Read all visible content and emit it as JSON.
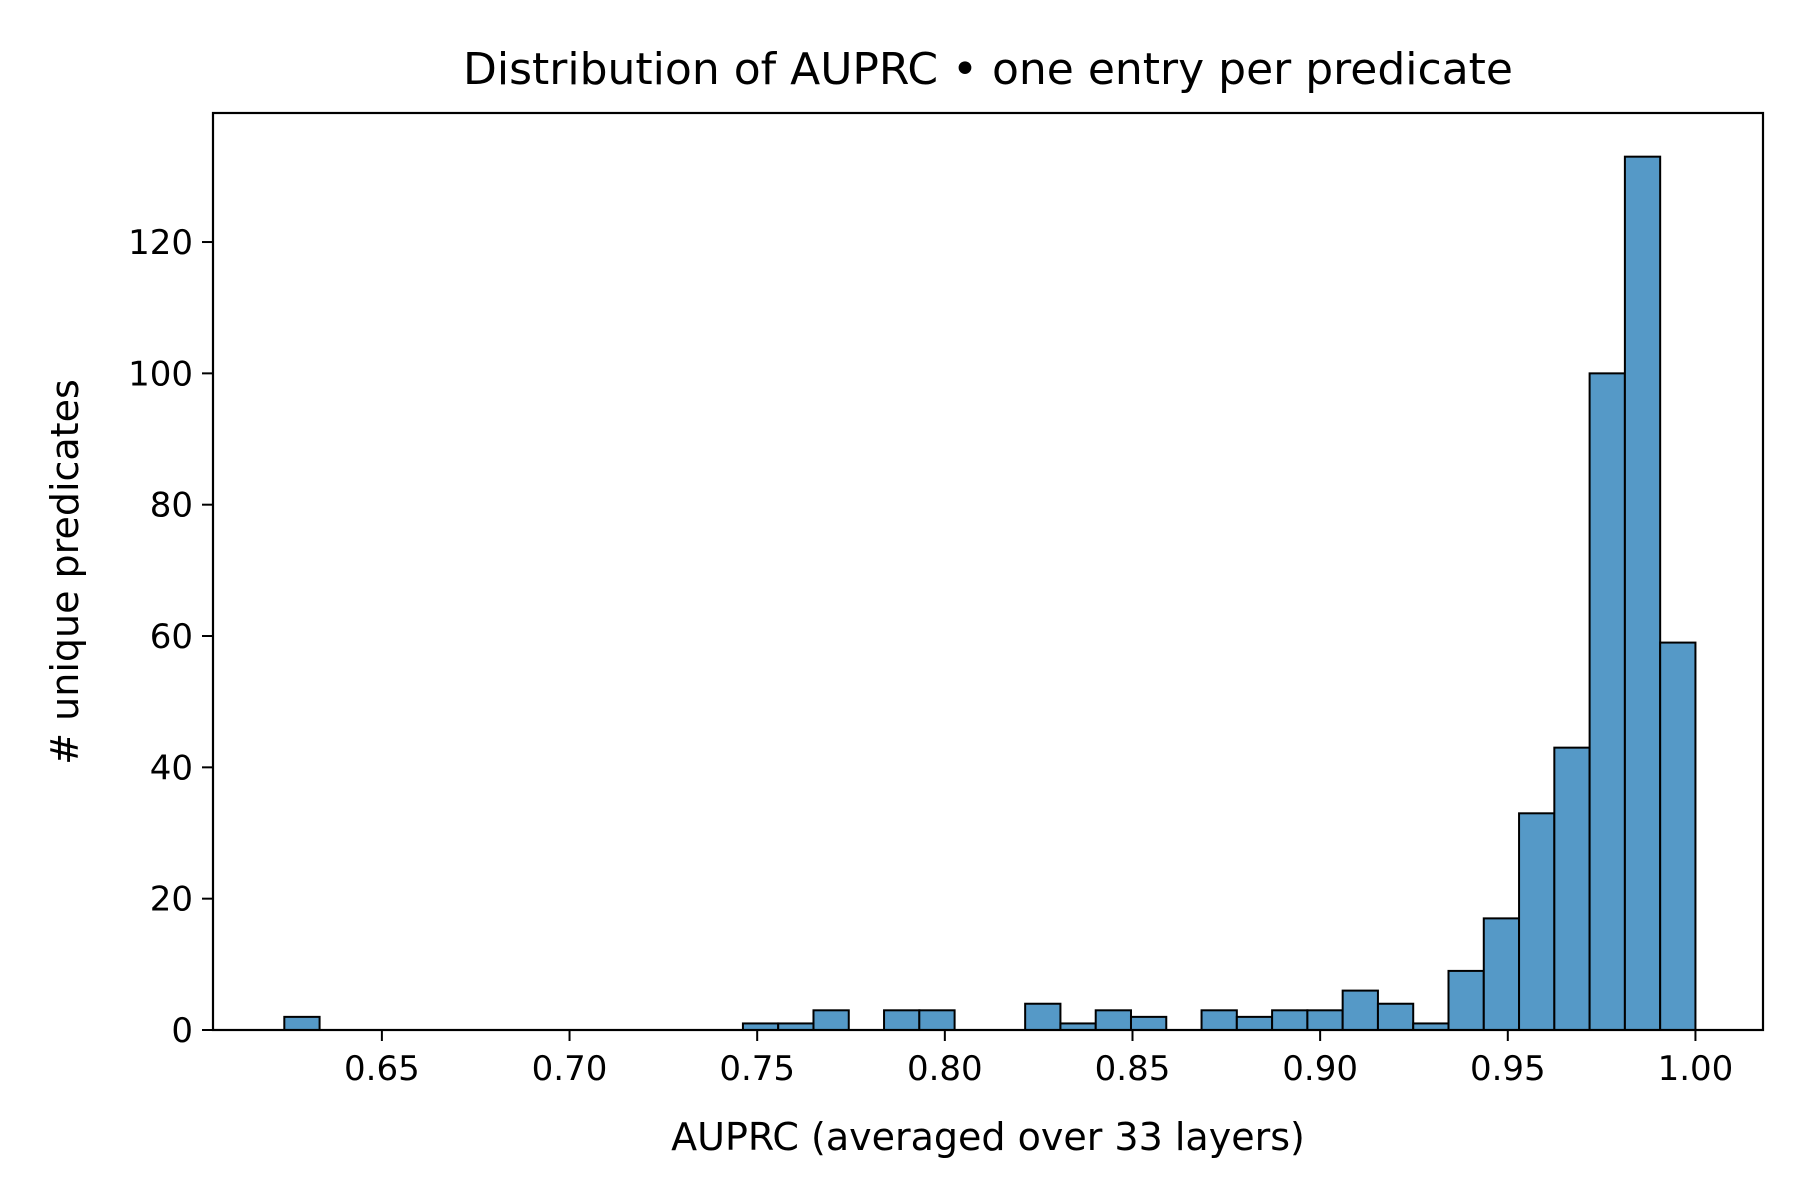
{
  "chart_data": {
    "type": "bar",
    "title": "Distribution of AUPRC • one entry per predicate",
    "xlabel": "AUPRC  (averaged over 33 layers)",
    "ylabel": "# unique predicates",
    "xlim": [
      0.605,
      1.018
    ],
    "ylim": [
      0,
      139.65
    ],
    "xticks": [
      0.65,
      0.7,
      0.75,
      0.8,
      0.85,
      0.9,
      0.95,
      1.0
    ],
    "xtick_labels": [
      "0.65",
      "0.70",
      "0.75",
      "0.80",
      "0.85",
      "0.90",
      "0.95",
      "1.00"
    ],
    "yticks": [
      0,
      20,
      40,
      60,
      80,
      100,
      120
    ],
    "ytick_labels": [
      "0",
      "20",
      "40",
      "60",
      "80",
      "100",
      "120"
    ],
    "grid": false,
    "bar_color": "#5599c7",
    "edge_color": "#000000",
    "bins": [
      {
        "x0": 0.624,
        "x1": 0.6334,
        "count": 2
      },
      {
        "x0": 0.7462,
        "x1": 0.7556,
        "count": 1
      },
      {
        "x0": 0.7556,
        "x1": 0.765,
        "count": 1
      },
      {
        "x0": 0.765,
        "x1": 0.7744,
        "count": 3
      },
      {
        "x0": 0.7838,
        "x1": 0.7932,
        "count": 3
      },
      {
        "x0": 0.7932,
        "x1": 0.8026,
        "count": 3
      },
      {
        "x0": 0.8214,
        "x1": 0.8308,
        "count": 4
      },
      {
        "x0": 0.8308,
        "x1": 0.8402,
        "count": 1
      },
      {
        "x0": 0.8402,
        "x1": 0.8496,
        "count": 3
      },
      {
        "x0": 0.8496,
        "x1": 0.859,
        "count": 2
      },
      {
        "x0": 0.8684,
        "x1": 0.8778,
        "count": 3
      },
      {
        "x0": 0.8778,
        "x1": 0.8872,
        "count": 2
      },
      {
        "x0": 0.8872,
        "x1": 0.8966,
        "count": 3
      },
      {
        "x0": 0.8966,
        "x1": 0.906,
        "count": 3
      },
      {
        "x0": 0.906,
        "x1": 0.9154,
        "count": 6
      },
      {
        "x0": 0.9154,
        "x1": 0.9248,
        "count": 4
      },
      {
        "x0": 0.9248,
        "x1": 0.9342,
        "count": 1
      },
      {
        "x0": 0.9342,
        "x1": 0.9436,
        "count": 9
      },
      {
        "x0": 0.9436,
        "x1": 0.953,
        "count": 17
      },
      {
        "x0": 0.953,
        "x1": 0.9624,
        "count": 33
      },
      {
        "x0": 0.9624,
        "x1": 0.9718,
        "count": 43
      },
      {
        "x0": 0.9718,
        "x1": 0.9812,
        "count": 100
      },
      {
        "x0": 0.9812,
        "x1": 0.9906,
        "count": 133
      },
      {
        "x0": 0.9906,
        "x1": 1.0,
        "count": 59
      }
    ]
  }
}
